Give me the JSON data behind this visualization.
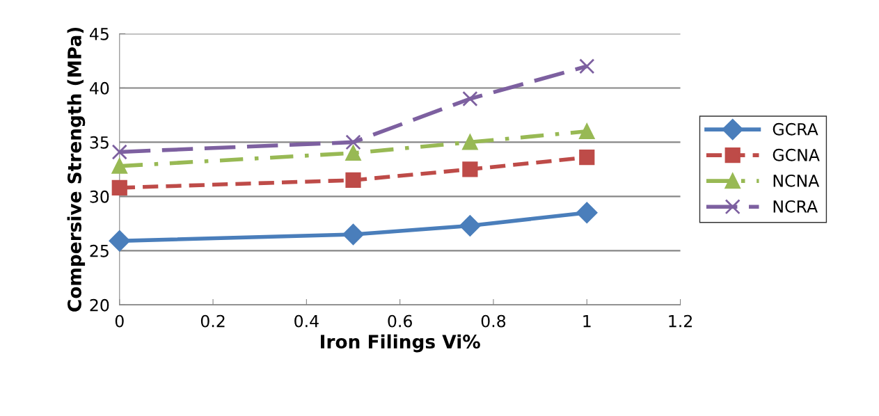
{
  "chart_data": {
    "type": "line",
    "xlabel": "Iron Filings Vi%",
    "ylabel": "Compersive Strength (MPa)",
    "x": [
      0,
      0.5,
      0.75,
      1
    ],
    "series": [
      {
        "name": "GCRA",
        "color": "#4a7ebb",
        "values": [
          25.9,
          26.5,
          27.3,
          28.5
        ],
        "marker": "diamond",
        "line_style": "solid"
      },
      {
        "name": "GCNA",
        "color": "#be4b48",
        "values": [
          30.8,
          31.5,
          32.5,
          33.6
        ],
        "marker": "square",
        "line_style": "dashed"
      },
      {
        "name": "NCNA",
        "color": "#98b954",
        "values": [
          32.8,
          34,
          35,
          36
        ],
        "marker": "triangle",
        "line_style": "dashdot"
      },
      {
        "name": "NCRA",
        "color": "#7d60a0",
        "values": [
          34.1,
          35,
          39,
          42
        ],
        "marker": "cross",
        "line_style": "longdash"
      }
    ],
    "xlim": [
      0,
      1.2
    ],
    "xticks": [
      0,
      0.2,
      0.4,
      0.6,
      0.8,
      1,
      1.2
    ],
    "ylim": [
      20,
      45
    ],
    "yticks": [
      20,
      25,
      30,
      35,
      40,
      45
    ],
    "grid": "y",
    "legend": "right"
  }
}
